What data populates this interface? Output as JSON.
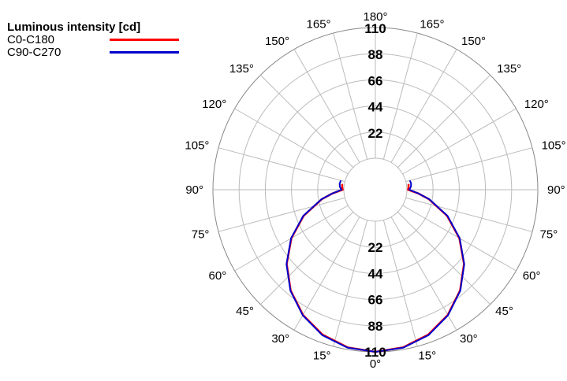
{
  "chart_data": {
    "type": "polar",
    "title": "Luminous intensity [cd]",
    "radial_ticks": [
      "22",
      "44",
      "66",
      "88",
      "110"
    ],
    "radial_max": 110,
    "angle_labels": {
      "right": [
        "0°",
        "15°",
        "30°",
        "45°",
        "60°",
        "75°",
        "90°",
        "105°",
        "120°",
        "135°",
        "150°",
        "165°",
        "180°"
      ],
      "left": [
        "15°",
        "30°",
        "45°",
        "60°",
        "75°",
        "90°",
        "105°",
        "120°",
        "135°",
        "150°",
        "165°"
      ]
    },
    "grid": true,
    "legend_position": "top-left",
    "series": [
      {
        "name": "C0-C180",
        "color": "#ff0000",
        "angles_deg": [
          0,
          10,
          20,
          30,
          40,
          50,
          60,
          70,
          80,
          85,
          90,
          95,
          100
        ],
        "values": [
          110,
          108.3,
          103.3,
          95.2,
          84.2,
          70.7,
          55,
          37.6,
          19.2,
          9.6,
          1,
          1.5,
          1.8
        ]
      },
      {
        "name": "C90-C270",
        "color": "#0000cc",
        "angles_deg": [
          0,
          10,
          20,
          30,
          40,
          50,
          60,
          70,
          80,
          85,
          90,
          95,
          100,
          105
        ],
        "values": [
          110,
          108.5,
          103.8,
          95.5,
          84.5,
          71,
          55.3,
          38,
          19.5,
          9.8,
          2,
          3.5,
          4,
          3.5
        ]
      }
    ]
  }
}
